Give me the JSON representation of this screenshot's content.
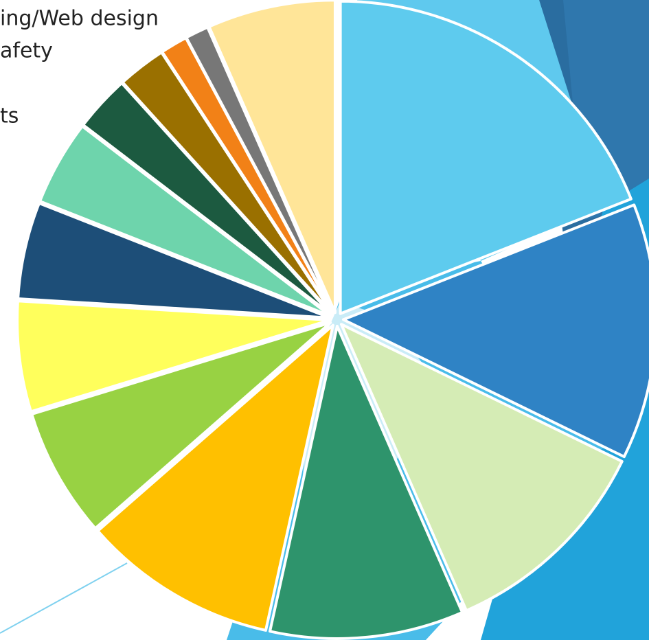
{
  "chart_data": {
    "type": "pie",
    "annotations": [
      "ing/Web design",
      "afety",
      "ts"
    ],
    "values": [
      19,
      13.2,
      11.2,
      10,
      10.1,
      6.7,
      5.7,
      5,
      4.4,
      2.9,
      2.5,
      1.4,
      1.2,
      6.6
    ],
    "colors": [
      "#5ecbee",
      "#2f83c5",
      "#d5ecb5",
      "#2e946c",
      "#ffc000",
      "#98d243",
      "#ffff5c",
      "#1d4e78",
      "#6ed4ac",
      "#1c5a40",
      "#9a7000",
      "#f28117",
      "#777777",
      "#ffe598"
    ]
  }
}
